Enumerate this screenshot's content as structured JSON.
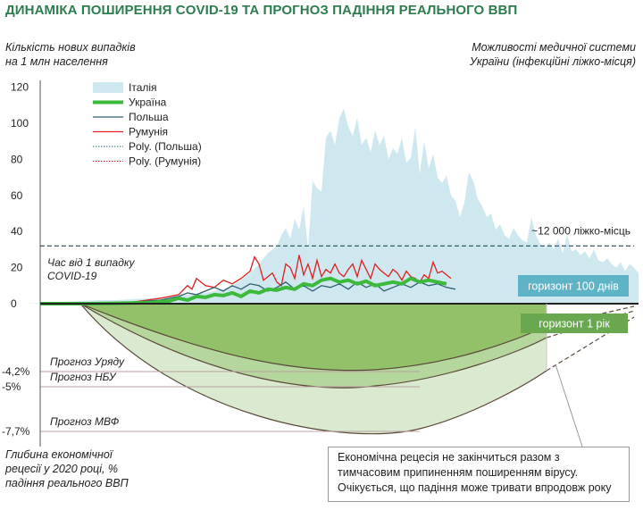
{
  "title": "ДИНАМІКА ПОШИРЕННЯ COVID-19 ТА ПРОГНОЗ ПАДІННЯ РЕАЛЬНОГО ВВП",
  "left_axis_label": [
    "Кількість нових випадків",
    "на 1 млн населення"
  ],
  "right_axis_label": [
    "Можливості медичної системи",
    "України (інфекційні ліжко-місця)"
  ],
  "time_since_label": [
    "Час від 1 випадку",
    "COVID-19"
  ],
  "bottom_label": [
    "Глибина економічної",
    "рецесії у 2020 році, %",
    "падіння реального ВВП"
  ],
  "capacity_label": "~12 000 ліжко-місць",
  "horizon_100": "горизонт 100 днів",
  "horizon_year": "горизонт 1 рік",
  "callout": [
    "Економічна рецесія не закінчиться разом з",
    "тимчасовим припиненням поширенням вірусу.",
    "Очікується, що падіння може тривати впродовж року"
  ],
  "colors": {
    "italy": "#cfe8ef",
    "ukraine": "#3cba3c",
    "poland": "#2f5f6e",
    "romania": "#e02020",
    "capacity": "#2f5f6e",
    "gdp_light": "#d9ead0",
    "gdp_mid": "#b5d69c",
    "gdp_dark": "#93c16a",
    "horizon_100": "#5fb3c7",
    "horizon_year": "#6aa84f",
    "title": "#2e7d4f"
  },
  "chart_data": {
    "type": "area",
    "ylim": [
      0,
      120
    ],
    "yticks": [
      "120",
      "100",
      "80",
      "60",
      "40",
      "20",
      "0"
    ],
    "capacity_level": 32,
    "legend": [
      {
        "name": "Італія",
        "style": "area"
      },
      {
        "name": "Україна",
        "style": "thick"
      },
      {
        "name": "Польша",
        "style": "line"
      },
      {
        "name": "Румунія",
        "style": "line"
      },
      {
        "name": "Poly. (Польша)",
        "style": "dotted"
      },
      {
        "name": "Poly. (Румунія)",
        "style": "dotted"
      }
    ],
    "italy": [
      [
        0,
        0
      ],
      [
        30,
        0
      ],
      [
        50,
        0.5
      ],
      [
        70,
        1
      ],
      [
        90,
        1.5
      ],
      [
        110,
        2
      ],
      [
        130,
        2
      ],
      [
        150,
        2.5
      ],
      [
        170,
        3
      ],
      [
        190,
        4
      ],
      [
        210,
        5
      ],
      [
        230,
        6
      ],
      [
        250,
        8
      ],
      [
        260,
        10
      ],
      [
        270,
        13
      ],
      [
        280,
        17
      ],
      [
        290,
        22
      ],
      [
        300,
        28
      ],
      [
        310,
        32
      ],
      [
        315,
        38
      ],
      [
        320,
        42
      ],
      [
        325,
        36
      ],
      [
        330,
        47
      ],
      [
        335,
        41
      ],
      [
        340,
        54
      ],
      [
        345,
        30
      ],
      [
        350,
        68
      ],
      [
        355,
        64
      ],
      [
        360,
        62
      ],
      [
        365,
        92
      ],
      [
        370,
        96
      ],
      [
        375,
        88
      ],
      [
        380,
        103
      ],
      [
        385,
        108
      ],
      [
        390,
        98
      ],
      [
        395,
        93
      ],
      [
        400,
        103
      ],
      [
        405,
        88
      ],
      [
        410,
        92
      ],
      [
        415,
        84
      ],
      [
        420,
        96
      ],
      [
        425,
        88
      ],
      [
        430,
        93
      ],
      [
        435,
        80
      ],
      [
        440,
        86
      ],
      [
        445,
        83
      ],
      [
        450,
        92
      ],
      [
        455,
        78
      ],
      [
        460,
        81
      ],
      [
        465,
        98
      ],
      [
        470,
        72
      ],
      [
        475,
        90
      ],
      [
        480,
        75
      ],
      [
        485,
        83
      ],
      [
        490,
        70
      ],
      [
        495,
        67
      ],
      [
        500,
        71
      ],
      [
        505,
        60
      ],
      [
        510,
        57
      ],
      [
        515,
        48
      ],
      [
        520,
        56
      ],
      [
        525,
        73
      ],
      [
        530,
        68
      ],
      [
        535,
        58
      ],
      [
        540,
        54
      ],
      [
        545,
        48
      ],
      [
        550,
        50
      ],
      [
        555,
        41
      ],
      [
        560,
        44
      ],
      [
        565,
        38
      ],
      [
        570,
        36
      ],
      [
        575,
        42
      ],
      [
        580,
        38
      ],
      [
        585,
        35
      ],
      [
        590,
        34
      ],
      [
        595,
        48
      ],
      [
        600,
        38
      ],
      [
        605,
        33
      ],
      [
        610,
        31
      ],
      [
        615,
        34
      ],
      [
        620,
        30
      ],
      [
        625,
        36
      ],
      [
        630,
        28
      ],
      [
        635,
        38
      ],
      [
        640,
        29
      ],
      [
        645,
        30
      ],
      [
        650,
        27
      ],
      [
        655,
        29
      ],
      [
        660,
        25
      ],
      [
        665,
        30
      ],
      [
        670,
        24
      ],
      [
        675,
        23
      ],
      [
        680,
        25
      ],
      [
        685,
        22
      ],
      [
        690,
        20
      ],
      [
        695,
        23
      ],
      [
        700,
        18
      ],
      [
        705,
        22
      ],
      [
        710,
        20
      ],
      [
        715,
        17
      ]
    ],
    "ukraine": [
      [
        45,
        0
      ],
      [
        100,
        0
      ],
      [
        140,
        0.3
      ],
      [
        170,
        0.6
      ],
      [
        190,
        1.5
      ],
      [
        200,
        3
      ],
      [
        210,
        2
      ],
      [
        220,
        4
      ],
      [
        230,
        3.5
      ],
      [
        240,
        5
      ],
      [
        250,
        4.5
      ],
      [
        260,
        6
      ],
      [
        270,
        4
      ],
      [
        280,
        7
      ],
      [
        290,
        6
      ],
      [
        300,
        8
      ],
      [
        310,
        7.5
      ],
      [
        320,
        9
      ],
      [
        330,
        8
      ],
      [
        340,
        11
      ],
      [
        350,
        10
      ],
      [
        360,
        13
      ],
      [
        370,
        14
      ],
      [
        380,
        12
      ],
      [
        390,
        13
      ],
      [
        400,
        11
      ],
      [
        410,
        12.5
      ],
      [
        420,
        10
      ],
      [
        430,
        11
      ],
      [
        440,
        12
      ],
      [
        450,
        11
      ],
      [
        460,
        14
      ],
      [
        470,
        12
      ],
      [
        480,
        13
      ],
      [
        490,
        12
      ],
      [
        500,
        11
      ]
    ],
    "poland": [
      [
        45,
        0
      ],
      [
        110,
        0.3
      ],
      [
        150,
        1
      ],
      [
        180,
        2
      ],
      [
        200,
        4
      ],
      [
        210,
        6
      ],
      [
        220,
        5
      ],
      [
        230,
        7
      ],
      [
        240,
        9
      ],
      [
        250,
        7
      ],
      [
        260,
        10
      ],
      [
        270,
        8
      ],
      [
        280,
        11
      ],
      [
        290,
        10
      ],
      [
        300,
        7
      ],
      [
        310,
        9
      ],
      [
        320,
        12
      ],
      [
        330,
        8
      ],
      [
        340,
        10
      ],
      [
        350,
        7
      ],
      [
        360,
        10
      ],
      [
        370,
        9
      ],
      [
        380,
        11
      ],
      [
        390,
        8
      ],
      [
        400,
        12
      ],
      [
        410,
        9
      ],
      [
        420,
        11
      ],
      [
        430,
        7
      ],
      [
        440,
        9
      ],
      [
        450,
        11
      ],
      [
        460,
        9
      ],
      [
        470,
        12
      ],
      [
        480,
        10
      ],
      [
        490,
        11
      ],
      [
        500,
        9
      ],
      [
        510,
        8
      ]
    ],
    "romania": [
      [
        45,
        0
      ],
      [
        120,
        0.3
      ],
      [
        150,
        1
      ],
      [
        180,
        3
      ],
      [
        200,
        5
      ],
      [
        210,
        10
      ],
      [
        215,
        8
      ],
      [
        220,
        14
      ],
      [
        230,
        10
      ],
      [
        240,
        9
      ],
      [
        250,
        13
      ],
      [
        260,
        11
      ],
      [
        270,
        14
      ],
      [
        280,
        18
      ],
      [
        285,
        26
      ],
      [
        290,
        22
      ],
      [
        295,
        13
      ],
      [
        300,
        15
      ],
      [
        305,
        17
      ],
      [
        310,
        12
      ],
      [
        315,
        10
      ],
      [
        320,
        22
      ],
      [
        325,
        20
      ],
      [
        330,
        14
      ],
      [
        335,
        27
      ],
      [
        340,
        16
      ],
      [
        345,
        22
      ],
      [
        350,
        14
      ],
      [
        355,
        24
      ],
      [
        360,
        15
      ],
      [
        365,
        19
      ],
      [
        370,
        17
      ],
      [
        375,
        22
      ],
      [
        380,
        17
      ],
      [
        385,
        15
      ],
      [
        390,
        19
      ],
      [
        395,
        22
      ],
      [
        400,
        15
      ],
      [
        405,
        24
      ],
      [
        410,
        19
      ],
      [
        415,
        14
      ],
      [
        420,
        22
      ],
      [
        425,
        19
      ],
      [
        430,
        17
      ],
      [
        435,
        15
      ],
      [
        440,
        19
      ],
      [
        445,
        17
      ],
      [
        450,
        13
      ],
      [
        455,
        18
      ],
      [
        460,
        15
      ],
      [
        465,
        14
      ],
      [
        470,
        12
      ],
      [
        475,
        16
      ],
      [
        480,
        14
      ],
      [
        485,
        23
      ],
      [
        490,
        17
      ],
      [
        495,
        18
      ],
      [
        500,
        16
      ],
      [
        505,
        14
      ]
    ],
    "gdp_forecast": [
      {
        "label": "Прогноз Уряду",
        "value": "-4,2%"
      },
      {
        "label": "Прогноз НБУ",
        "value": "-5%"
      },
      {
        "label": "Прогноз МВФ",
        "value": "-7,7%"
      }
    ]
  }
}
